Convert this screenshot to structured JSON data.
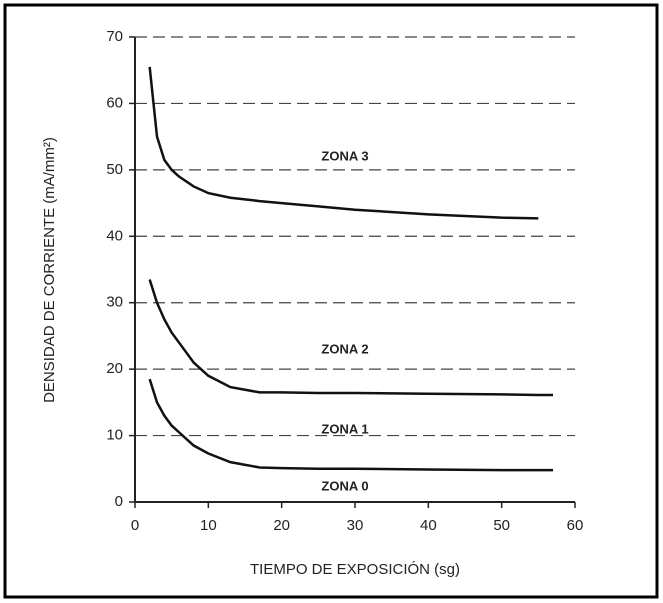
{
  "chart_data": {
    "type": "line",
    "x_label": "TIEMPO DE EXPOSICIÓN (sg)",
    "y_label": "DENSIDAD DE CORRIENTE (mA/mm²)",
    "x": [
      2,
      3,
      4,
      5,
      6,
      8,
      10,
      13,
      17,
      20,
      25,
      30,
      40,
      50,
      55,
      57
    ],
    "series": [
      {
        "color": "#111111",
        "values": [
          65.5,
          55,
          51.5,
          50,
          49,
          47.5,
          46.5,
          45.8,
          45.3,
          45,
          44.5,
          44,
          43.3,
          42.8,
          42.7,
          null
        ]
      },
      {
        "color": "#111111",
        "values": [
          33.5,
          30,
          27.5,
          25.5,
          24,
          21,
          19,
          17.3,
          16.5,
          16.5,
          16.4,
          16.4,
          16.3,
          16.2,
          16.1,
          16.1
        ]
      },
      {
        "color": "#111111",
        "values": [
          18.5,
          15,
          13,
          11.5,
          10.5,
          8.5,
          7.3,
          6,
          5.2,
          5.1,
          5,
          5,
          4.9,
          4.8,
          4.8,
          4.8
        ]
      }
    ],
    "annotations": [
      "ZONA 3",
      "ZONA 2",
      "ZONA 1",
      "ZONA 0"
    ],
    "xlim": [
      0,
      60
    ],
    "xticks": [
      0,
      10,
      20,
      30,
      40,
      50,
      60
    ],
    "ylim": [
      0,
      70
    ],
    "yticks": [
      0,
      10,
      20,
      30,
      40,
      50,
      60,
      70
    ],
    "grid": true
  }
}
